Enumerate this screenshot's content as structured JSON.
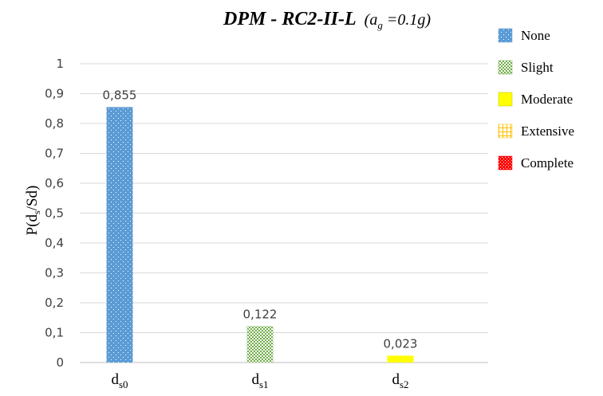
{
  "chart_data": {
    "type": "bar",
    "title": {
      "main": "DPM - RC2-II-L",
      "param_open": "(a",
      "param_sub": "g",
      "param_rest": " =0.1g)"
    },
    "ylabel": {
      "prefix": "P(d",
      "sub": "s",
      "suffix": "/Sd)"
    },
    "ylim": [
      0,
      1
    ],
    "yticks": [
      "0",
      "0,1",
      "0,2",
      "0,3",
      "0,4",
      "0,5",
      "0,6",
      "0,7",
      "0,8",
      "0,9",
      "1"
    ],
    "grid": true,
    "categories": [
      {
        "base": "d",
        "sub": "s0"
      },
      {
        "base": "d",
        "sub": "s1"
      },
      {
        "base": "d",
        "sub": "s2"
      }
    ],
    "bars": [
      {
        "category_index": 0,
        "value": 0.855,
        "label": "0,855",
        "pattern": "dots",
        "color": "#5B9BD5"
      },
      {
        "category_index": 1,
        "value": 0.122,
        "label": "0,122",
        "pattern": "checker",
        "color": "#70AD47"
      },
      {
        "category_index": 2,
        "value": 0.023,
        "label": "0,023",
        "pattern": "solid",
        "color": "#FFFF00"
      }
    ],
    "legend": {
      "position": "right",
      "entries": [
        {
          "name": "None",
          "pattern": "dots",
          "color": "#5B9BD5"
        },
        {
          "name": "Slight",
          "pattern": "checker",
          "color": "#70AD47"
        },
        {
          "name": "Moderate",
          "pattern": "solid",
          "color": "#FFFF00"
        },
        {
          "name": "Extensive",
          "pattern": "grid",
          "color": "#FFC000"
        },
        {
          "name": "Complete",
          "pattern": "diamond",
          "color": "#FF0000"
        }
      ]
    }
  }
}
